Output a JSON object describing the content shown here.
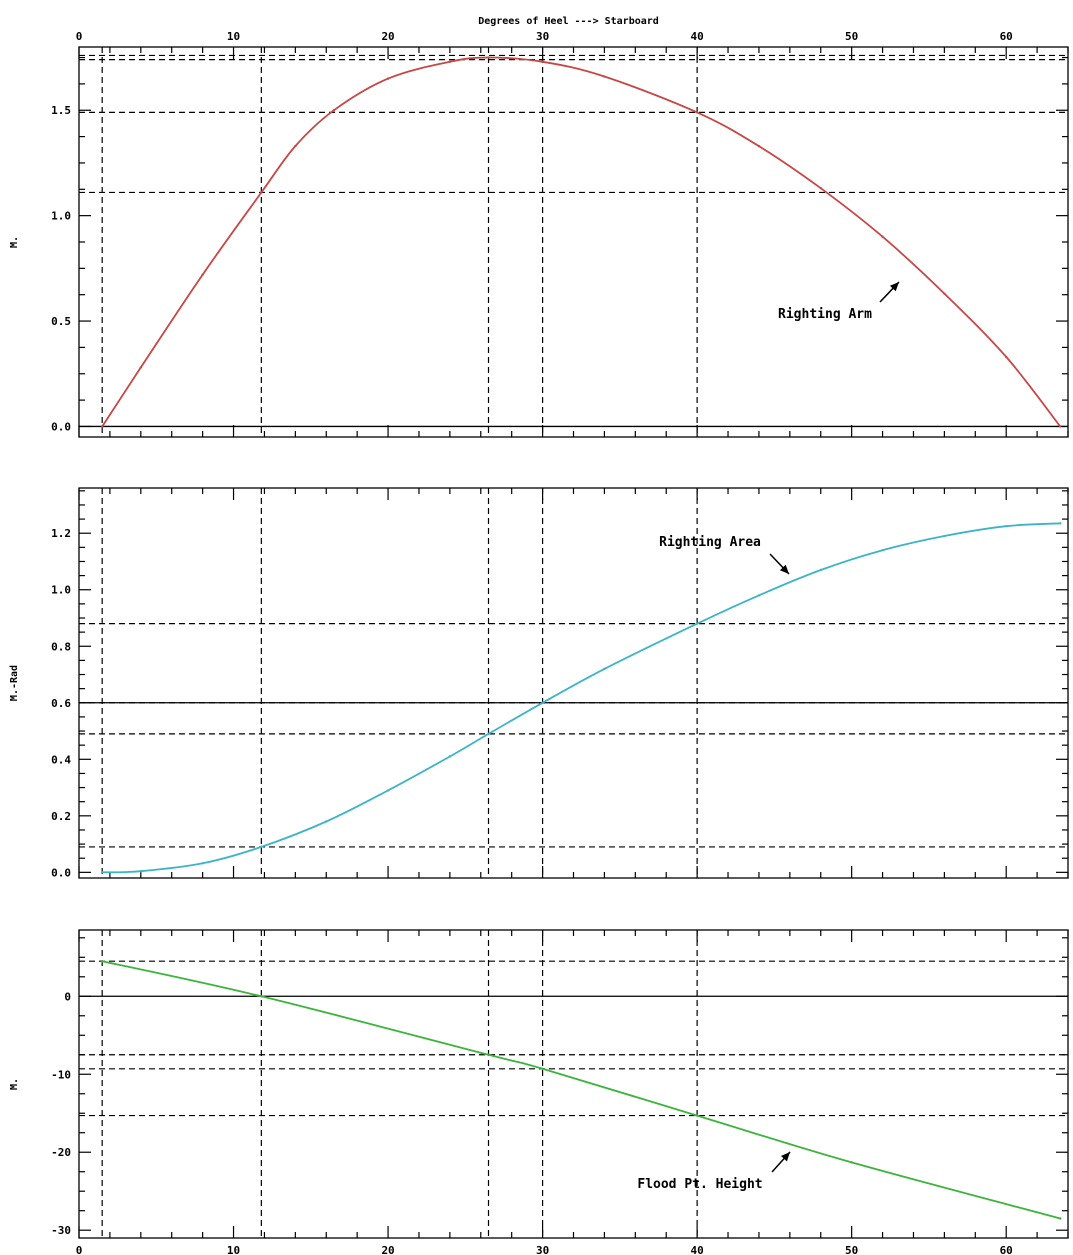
{
  "chart_data": [
    {
      "type": "line",
      "title": "",
      "xlabel": "Degrees of Heel ---> Starboard",
      "ylabel": "M.",
      "xlim": [
        0,
        64
      ],
      "ylim": [
        -0.05,
        1.8
      ],
      "x_ticks": [
        0,
        10,
        20,
        30,
        40,
        50,
        60
      ],
      "x_tick_labels": [
        "0",
        "10",
        "20",
        "30",
        "40",
        "50",
        "60"
      ],
      "y_ticks": [
        0.0,
        0.5,
        1.0,
        1.5
      ],
      "y_tick_labels": [
        "0.0",
        "0.5",
        "1.0",
        "1.5"
      ],
      "x_axis_position": "top",
      "grid": false,
      "line_color": "#c84646",
      "annotation": "Righting Arm",
      "reference_lines": {
        "vertical": [
          1.5,
          11.8,
          26.5,
          30,
          40
        ],
        "horizontal": [
          1.74,
          1.76,
          1.49,
          1.11
        ],
        "zero_line": 0
      },
      "series": [
        {
          "x": [
            1.5,
            4,
            8,
            11.8,
            14,
            16.5,
            20,
            24,
            26.5,
            30,
            34,
            40,
            44,
            48,
            52,
            56,
            60,
            63.5
          ],
          "values": [
            0.0,
            0.28,
            0.72,
            1.11,
            1.33,
            1.5,
            1.65,
            1.73,
            1.75,
            1.73,
            1.66,
            1.49,
            1.33,
            1.13,
            0.9,
            0.63,
            0.33,
            0.0
          ]
        }
      ]
    },
    {
      "type": "line",
      "title": "",
      "xlabel": "",
      "ylabel": "M.-Rad",
      "xlim": [
        0,
        64
      ],
      "ylim": [
        -0.02,
        1.36
      ],
      "x_ticks": [
        0,
        10,
        20,
        30,
        40,
        50,
        60
      ],
      "y_ticks": [
        0.0,
        0.2,
        0.4,
        0.6,
        0.8,
        1.0,
        1.2
      ],
      "y_tick_labels": [
        "0.0",
        "0.2",
        "0.4",
        "0.6",
        "0.8",
        "1.0",
        "1.2"
      ],
      "grid": false,
      "line_color": "#3cb4c8",
      "annotation": "Righting Area",
      "reference_lines": {
        "vertical": [
          1.5,
          11.8,
          26.5,
          30,
          40
        ],
        "horizontal": [
          0.88,
          0.6,
          0.49,
          0.09
        ],
        "zero_line": 0.6
      },
      "series": [
        {
          "x": [
            1.5,
            4,
            8,
            11.8,
            16,
            20,
            24,
            26.5,
            30,
            34,
            40,
            44,
            48,
            52,
            56,
            60,
            63.5
          ],
          "values": [
            0.0,
            0.004,
            0.032,
            0.09,
            0.18,
            0.29,
            0.41,
            0.49,
            0.6,
            0.72,
            0.88,
            0.98,
            1.07,
            1.14,
            1.19,
            1.225,
            1.235
          ]
        }
      ]
    },
    {
      "type": "line",
      "title": "",
      "xlabel": "",
      "ylabel": "M.",
      "xlim": [
        0,
        64
      ],
      "ylim": [
        -31,
        8.5
      ],
      "x_ticks": [
        0,
        10,
        20,
        30,
        40,
        50,
        60
      ],
      "x_tick_labels": [
        "0",
        "10",
        "20",
        "30",
        "40",
        "50",
        "60"
      ],
      "y_ticks": [
        -30,
        -20,
        -10,
        0
      ],
      "y_tick_labels": [
        "-30",
        "-20",
        "-10",
        "0"
      ],
      "x_axis_position": "bottom",
      "grid": false,
      "line_color": "#3cb43c",
      "annotation": "Flood Pt. Height",
      "reference_lines": {
        "vertical": [
          1.5,
          11.8,
          26.5,
          30,
          40
        ],
        "horizontal": [
          4.5,
          -7.5,
          -9.3,
          -15.3
        ],
        "zero_line": 0
      },
      "series": [
        {
          "x": [
            1.5,
            11.8,
            26.5,
            30,
            40,
            50,
            63.5
          ],
          "values": [
            4.5,
            0.0,
            -7.5,
            -9.3,
            -15.3,
            -21.3,
            -28.5
          ]
        }
      ]
    }
  ]
}
